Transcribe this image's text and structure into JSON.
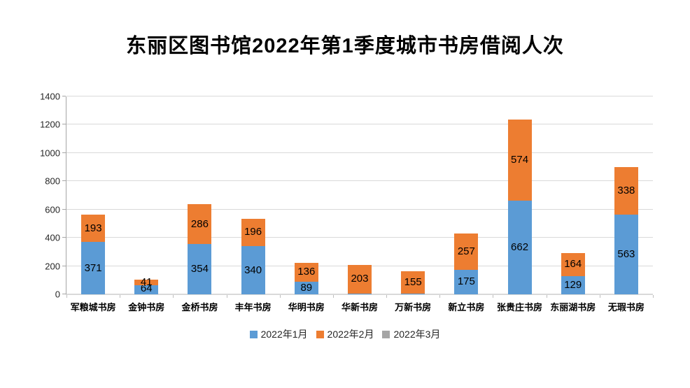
{
  "chart_data": {
    "type": "bar",
    "stacked": true,
    "title": "东丽区图书馆2022年第1季度城市书房借阅人次",
    "categories": [
      "军粮城书房",
      "金钟书房",
      "金桥书房",
      "丰年书房",
      "华明书房",
      "华新书房",
      "万新书房",
      "新立书房",
      "张贵庄书房",
      "东丽湖书房",
      "无瑕书房"
    ],
    "series": [
      {
        "name": "2022年1月",
        "color": "#5B9BD5",
        "values": [
          371,
          64,
          354,
          340,
          89,
          6,
          7,
          175,
          662,
          129,
          563
        ]
      },
      {
        "name": "2022年2月",
        "color": "#ED7D31",
        "values": [
          193,
          41,
          286,
          196,
          136,
          203,
          155,
          257,
          574,
          164,
          338
        ]
      },
      {
        "name": "2022年3月",
        "color": "#A5A5A5",
        "values": [
          0,
          0,
          0,
          0,
          0,
          0,
          0,
          0,
          0,
          0,
          0
        ]
      }
    ],
    "xlabel": "",
    "ylabel": "",
    "ylim": [
      0,
      1400
    ],
    "ytick_step": 200,
    "grid": true,
    "legend_position": "bottom",
    "data_labels": true
  },
  "colors": {
    "grid": "#D9D9D9",
    "y_axis": "#A6A6A6",
    "tick": "#BFBFBF",
    "text": "#000000",
    "background": "#FFFFFF"
  }
}
